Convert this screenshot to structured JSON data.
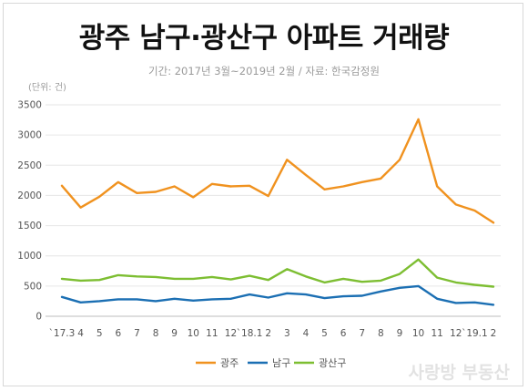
{
  "title": "광주 남구·광산구 아파트 거래량",
  "subtitle": "기간: 2017년 3월~2019년 2월 / 자료: 한국감정원",
  "unit_label": "(단위: 건)",
  "watermark": "사랑방 부동산",
  "chart_data": {
    "type": "line",
    "x": [
      "`17.3",
      "4",
      "5",
      "6",
      "7",
      "8",
      "9",
      "10",
      "11",
      "12",
      "`18.1",
      "2",
      "3",
      "4",
      "5",
      "6",
      "7",
      "8",
      "9",
      "10",
      "11",
      "12",
      "`19.1",
      "2"
    ],
    "ylim": [
      0,
      3500
    ],
    "yticks": [
      0,
      500,
      1000,
      1500,
      2000,
      2500,
      3000,
      3500
    ],
    "grid": true,
    "legend_position": "bottom",
    "series": [
      {
        "name": "광주",
        "color": "#F0921F",
        "values": [
          2160,
          1800,
          1980,
          2220,
          2040,
          2060,
          2150,
          1970,
          2190,
          2150,
          2160,
          1990,
          2590,
          2340,
          2100,
          2150,
          2220,
          2280,
          2590,
          3260,
          2150,
          1850,
          1750,
          1550
        ]
      },
      {
        "name": "남구",
        "color": "#1B6FB3",
        "values": [
          320,
          230,
          250,
          280,
          280,
          250,
          290,
          260,
          280,
          290,
          360,
          310,
          380,
          360,
          300,
          330,
          340,
          410,
          470,
          500,
          290,
          220,
          230,
          190
        ]
      },
      {
        "name": "광산구",
        "color": "#7DBE32",
        "values": [
          620,
          590,
          600,
          680,
          660,
          650,
          620,
          620,
          650,
          610,
          670,
          600,
          780,
          660,
          560,
          620,
          570,
          590,
          700,
          940,
          640,
          560,
          520,
          490
        ]
      }
    ]
  }
}
